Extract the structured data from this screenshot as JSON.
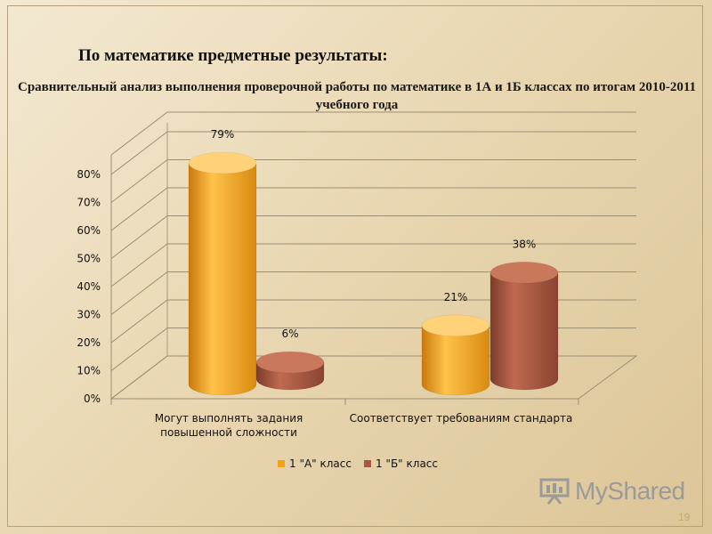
{
  "slide": {
    "heading": "По математике предметные результаты:",
    "subtitle": "Сравнительный анализ выполнения проверочной работы по математике в 1А и 1Б классах по итогам 2010-2011 учебного года",
    "logo_text": "MyShared",
    "page_number": "19"
  },
  "chart_data": {
    "type": "bar",
    "style": "3d-cylinder",
    "title": "",
    "categories": [
      "Могут выполнять задания повышенной сложности",
      "Соответствует требованиям стандарта"
    ],
    "category_lines": [
      [
        "Могут выполнять задания",
        "повышенной сложности"
      ],
      [
        "Соответствует требованиям стандарта"
      ]
    ],
    "series": [
      {
        "name": "1 \"А\" класс",
        "values": [
          79,
          21
        ],
        "labels": [
          "79%",
          "21%"
        ],
        "color": "#F2A21A"
      },
      {
        "name": "1 \"Б\" класс",
        "values": [
          6,
          38
        ],
        "labels": [
          "6%",
          "38%"
        ],
        "color": "#A9573F"
      }
    ],
    "yticks": [
      "0%",
      "10%",
      "20%",
      "30%",
      "40%",
      "50%",
      "60%",
      "70%",
      "80%"
    ],
    "ylim": [
      0,
      80
    ],
    "grid": true,
    "legend": "bottom"
  }
}
